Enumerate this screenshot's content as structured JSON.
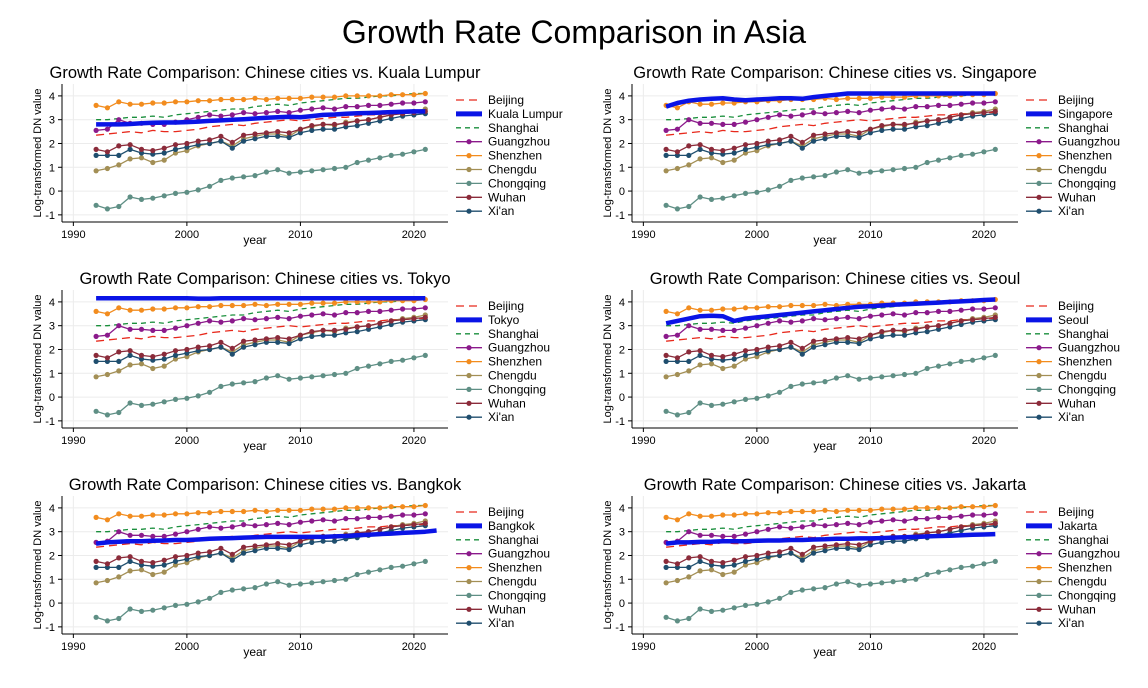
{
  "title": "Growth Rate Comparison in Asia",
  "colors": {
    "Beijing": "#e8291c",
    "Shanghai": "#1a8f3c",
    "Guangzhou": "#8b1a8b",
    "Shenzhen": "#f28c1e",
    "Chengdu": "#a38f55",
    "Chongqing": "#5f8f85",
    "Wuhan": "#8b2b3a",
    "Xi'an": "#1f4e6e",
    "foreign": "#0a14e6"
  },
  "chart_data": [
    {
      "type": "line",
      "title": "Growth Rate Comparison: Chinese cities vs. Kuala Lumpur",
      "xlabel": "year",
      "ylabel": "Log-transformed DN value",
      "xlim": [
        1989,
        2023
      ],
      "ylim": [
        -1.3,
        4.5
      ],
      "xticks": [
        1990,
        2000,
        2010,
        2020
      ],
      "yticks": [
        -1,
        0,
        1,
        2,
        3,
        4
      ],
      "grid": true,
      "legend_position": "right",
      "x_start": 1992,
      "x_end": 2021,
      "legend": [
        "Beijing",
        "Kuala Lumpur",
        "Shanghai",
        "Guangzhou",
        "Shenzhen",
        "Chengdu",
        "Chongqing",
        "Wuhan",
        "Xi'an"
      ],
      "foreign": {
        "name": "Kuala Lumpur",
        "values": [
          2.8,
          2.8,
          2.8,
          2.82,
          2.85,
          2.87,
          2.88,
          2.88,
          2.9,
          2.92,
          2.95,
          2.97,
          3.0,
          3.02,
          3.05,
          3.08,
          3.1,
          3.12,
          3.1,
          3.15,
          3.2,
          3.22,
          3.25,
          3.27,
          3.28,
          3.3,
          3.32,
          3.33,
          3.35,
          3.35
        ]
      }
    },
    {
      "type": "line",
      "title": "Growth Rate Comparison: Chinese cities vs. Singapore",
      "xlabel": "year",
      "ylabel": "Log-transformed DN value",
      "xlim": [
        1989,
        2023
      ],
      "ylim": [
        -1.3,
        4.5
      ],
      "xticks": [
        1990,
        2000,
        2010,
        2020
      ],
      "yticks": [
        -1,
        0,
        1,
        2,
        3,
        4
      ],
      "grid": true,
      "legend_position": "right",
      "x_start": 1992,
      "x_end": 2021,
      "legend": [
        "Beijing",
        "Singapore",
        "Shanghai",
        "Guangzhou",
        "Shenzhen",
        "Chengdu",
        "Chongqing",
        "Wuhan",
        "Xi'an"
      ],
      "foreign": {
        "name": "Singapore",
        "values": [
          3.55,
          3.7,
          3.8,
          3.85,
          3.88,
          3.9,
          3.85,
          3.82,
          3.85,
          3.87,
          3.9,
          3.9,
          3.88,
          3.95,
          4.0,
          4.05,
          4.1,
          4.1,
          4.1,
          4.1,
          4.1,
          4.1,
          4.1,
          4.1,
          4.1,
          4.1,
          4.1,
          4.1,
          4.1,
          4.1
        ]
      }
    },
    {
      "type": "line",
      "title": "Growth Rate Comparison: Chinese cities vs. Tokyo",
      "xlabel": "year",
      "ylabel": "Log-transformed DN value",
      "xlim": [
        1989,
        2023
      ],
      "ylim": [
        -1.3,
        4.5
      ],
      "xticks": [
        1990,
        2000,
        2010,
        2020
      ],
      "yticks": [
        -1,
        0,
        1,
        2,
        3,
        4
      ],
      "grid": true,
      "legend_position": "right",
      "x_start": 1992,
      "x_end": 2021,
      "legend": [
        "Beijing",
        "Tokyo",
        "Shanghai",
        "Guangzhou",
        "Shenzhen",
        "Chengdu",
        "Chongqing",
        "Wuhan",
        "Xi'an"
      ],
      "foreign": {
        "name": "Tokyo",
        "values": [
          4.15,
          4.15,
          4.15,
          4.15,
          4.15,
          4.15,
          4.15,
          4.15,
          4.15,
          4.14,
          4.14,
          4.15,
          4.15,
          4.15,
          4.15,
          4.15,
          4.15,
          4.15,
          4.15,
          4.15,
          4.15,
          4.15,
          4.15,
          4.15,
          4.15,
          4.15,
          4.15,
          4.15,
          4.15,
          4.15
        ]
      }
    },
    {
      "type": "line",
      "title": "Growth Rate Comparison: Chinese cities vs. Seoul",
      "xlabel": "year",
      "ylabel": "Log-transformed DN value",
      "xlim": [
        1989,
        2023
      ],
      "ylim": [
        -1.3,
        4.5
      ],
      "xticks": [
        1990,
        2000,
        2010,
        2020
      ],
      "yticks": [
        -1,
        0,
        1,
        2,
        3,
        4
      ],
      "grid": true,
      "legend_position": "right",
      "x_start": 1992,
      "x_end": 2021,
      "legend": [
        "Beijing",
        "Seoul",
        "Shanghai",
        "Guangzhou",
        "Shenzhen",
        "Chengdu",
        "Chongqing",
        "Wuhan",
        "Xi'an"
      ],
      "foreign": {
        "name": "Seoul",
        "values": [
          3.1,
          3.2,
          3.3,
          3.4,
          3.42,
          3.4,
          3.2,
          3.3,
          3.35,
          3.4,
          3.45,
          3.5,
          3.55,
          3.6,
          3.65,
          3.7,
          3.75,
          3.8,
          3.82,
          3.85,
          3.88,
          3.9,
          3.92,
          3.95,
          3.97,
          4.0,
          4.02,
          4.05,
          4.08,
          4.1
        ]
      }
    },
    {
      "type": "line",
      "title": "Growth Rate Comparison: Chinese cities vs. Bangkok",
      "xlabel": "year",
      "ylabel": "Log-transformed DN value",
      "xlim": [
        1989,
        2023
      ],
      "ylim": [
        -1.3,
        4.5
      ],
      "xticks": [
        1990,
        2000,
        2010,
        2020
      ],
      "yticks": [
        -1,
        0,
        1,
        2,
        3,
        4
      ],
      "grid": true,
      "legend_position": "right",
      "x_start": 1992,
      "x_end": 2022,
      "legend": [
        "Beijing",
        "Bangkok",
        "Shanghai",
        "Guangzhou",
        "Shenzhen",
        "Chengdu",
        "Chongqing",
        "Wuhan",
        "Xi'an"
      ],
      "foreign": {
        "name": "Bangkok",
        "values": [
          2.5,
          2.55,
          2.58,
          2.6,
          2.6,
          2.62,
          2.63,
          2.65,
          2.65,
          2.67,
          2.7,
          2.72,
          2.73,
          2.75,
          2.77,
          2.78,
          2.78,
          2.78,
          2.78,
          2.78,
          2.78,
          2.8,
          2.82,
          2.85,
          2.87,
          2.9,
          2.92,
          2.95,
          2.97,
          3.0,
          3.05
        ]
      }
    },
    {
      "type": "line",
      "title": "Growth Rate Comparison: Chinese cities vs. Jakarta",
      "xlabel": "year",
      "ylabel": "Log-transformed DN value",
      "xlim": [
        1989,
        2023
      ],
      "ylim": [
        -1.3,
        4.5
      ],
      "xticks": [
        1990,
        2000,
        2010,
        2020
      ],
      "yticks": [
        -1,
        0,
        1,
        2,
        3,
        4
      ],
      "grid": true,
      "legend_position": "right",
      "x_start": 1992,
      "x_end": 2021,
      "legend": [
        "Beijing",
        "Jakarta",
        "Shanghai",
        "Guangzhou",
        "Shenzhen",
        "Chengdu",
        "Chongqing",
        "Wuhan",
        "Xi'an"
      ],
      "foreign": {
        "name": "Jakarta",
        "values": [
          2.5,
          2.55,
          2.55,
          2.57,
          2.58,
          2.6,
          2.6,
          2.6,
          2.62,
          2.63,
          2.63,
          2.65,
          2.65,
          2.67,
          2.68,
          2.7,
          2.7,
          2.72,
          2.72,
          2.73,
          2.75,
          2.77,
          2.78,
          2.8,
          2.82,
          2.83,
          2.85,
          2.87,
          2.88,
          2.9
        ]
      }
    }
  ],
  "chinese_series": [
    {
      "name": "Beijing",
      "style": "longdash",
      "marker": false,
      "values": [
        2.35,
        2.4,
        2.45,
        2.5,
        2.45,
        2.55,
        2.5,
        2.5,
        2.55,
        2.6,
        2.7,
        2.75,
        2.8,
        2.75,
        2.85,
        2.9,
        2.95,
        3.0,
        2.95,
        3.0,
        3.05,
        3.1,
        3.1,
        3.15,
        3.2,
        3.2,
        3.25,
        3.25,
        3.3,
        3.3
      ]
    },
    {
      "name": "Shanghai",
      "style": "dash",
      "marker": false,
      "values": [
        3.0,
        3.0,
        3.05,
        3.1,
        3.1,
        3.15,
        3.1,
        3.2,
        3.25,
        3.3,
        3.35,
        3.4,
        3.45,
        3.45,
        3.55,
        3.6,
        3.65,
        3.6,
        3.7,
        3.75,
        3.8,
        3.85,
        3.9,
        3.9,
        3.95,
        4.0,
        4.0,
        4.05,
        4.1,
        4.1
      ]
    },
    {
      "name": "Guangzhou",
      "style": "solid",
      "marker": true,
      "values": [
        2.55,
        2.6,
        3.0,
        2.85,
        2.85,
        2.8,
        2.8,
        2.9,
        3.0,
        3.1,
        3.2,
        3.15,
        3.2,
        3.3,
        3.25,
        3.3,
        3.35,
        3.3,
        3.4,
        3.45,
        3.5,
        3.45,
        3.55,
        3.55,
        3.6,
        3.6,
        3.65,
        3.7,
        3.7,
        3.75
      ]
    },
    {
      "name": "Shenzhen",
      "style": "solid",
      "marker": true,
      "values": [
        3.6,
        3.5,
        3.75,
        3.65,
        3.65,
        3.7,
        3.7,
        3.75,
        3.75,
        3.8,
        3.8,
        3.85,
        3.85,
        3.85,
        3.9,
        3.85,
        3.9,
        3.9,
        3.9,
        3.95,
        3.95,
        3.95,
        4.0,
        4.0,
        4.0,
        4.0,
        4.05,
        4.05,
        4.05,
        4.1
      ]
    },
    {
      "name": "Chengdu",
      "style": "solid",
      "marker": true,
      "values": [
        0.85,
        0.95,
        1.1,
        1.35,
        1.4,
        1.2,
        1.3,
        1.6,
        1.7,
        1.9,
        2.0,
        2.1,
        1.9,
        2.2,
        2.3,
        2.4,
        2.4,
        2.3,
        2.6,
        2.7,
        2.8,
        2.75,
        2.9,
        2.95,
        3.0,
        3.1,
        3.2,
        3.3,
        3.35,
        3.45
      ]
    },
    {
      "name": "Chongqing",
      "style": "solid",
      "marker": true,
      "values": [
        -0.6,
        -0.75,
        -0.65,
        -0.25,
        -0.35,
        -0.3,
        -0.2,
        -0.1,
        -0.05,
        0.05,
        0.2,
        0.45,
        0.55,
        0.6,
        0.65,
        0.8,
        0.9,
        0.75,
        0.8,
        0.85,
        0.9,
        0.95,
        1.0,
        1.2,
        1.3,
        1.4,
        1.5,
        1.55,
        1.65,
        1.75
      ]
    },
    {
      "name": "Wuhan",
      "style": "solid",
      "marker": true,
      "values": [
        1.75,
        1.65,
        1.9,
        1.95,
        1.75,
        1.7,
        1.8,
        1.95,
        2.0,
        2.1,
        2.15,
        2.3,
        2.05,
        2.35,
        2.4,
        2.45,
        2.5,
        2.45,
        2.6,
        2.75,
        2.8,
        2.8,
        2.85,
        2.95,
        3.0,
        3.1,
        3.2,
        3.25,
        3.3,
        3.35
      ]
    },
    {
      "name": "Xi'an",
      "style": "solid",
      "marker": true,
      "values": [
        1.5,
        1.5,
        1.5,
        1.75,
        1.6,
        1.55,
        1.6,
        1.75,
        1.85,
        1.95,
        2.0,
        2.1,
        1.8,
        2.1,
        2.2,
        2.3,
        2.3,
        2.25,
        2.45,
        2.55,
        2.6,
        2.6,
        2.7,
        2.75,
        2.85,
        2.95,
        3.05,
        3.15,
        3.2,
        3.25
      ]
    }
  ]
}
